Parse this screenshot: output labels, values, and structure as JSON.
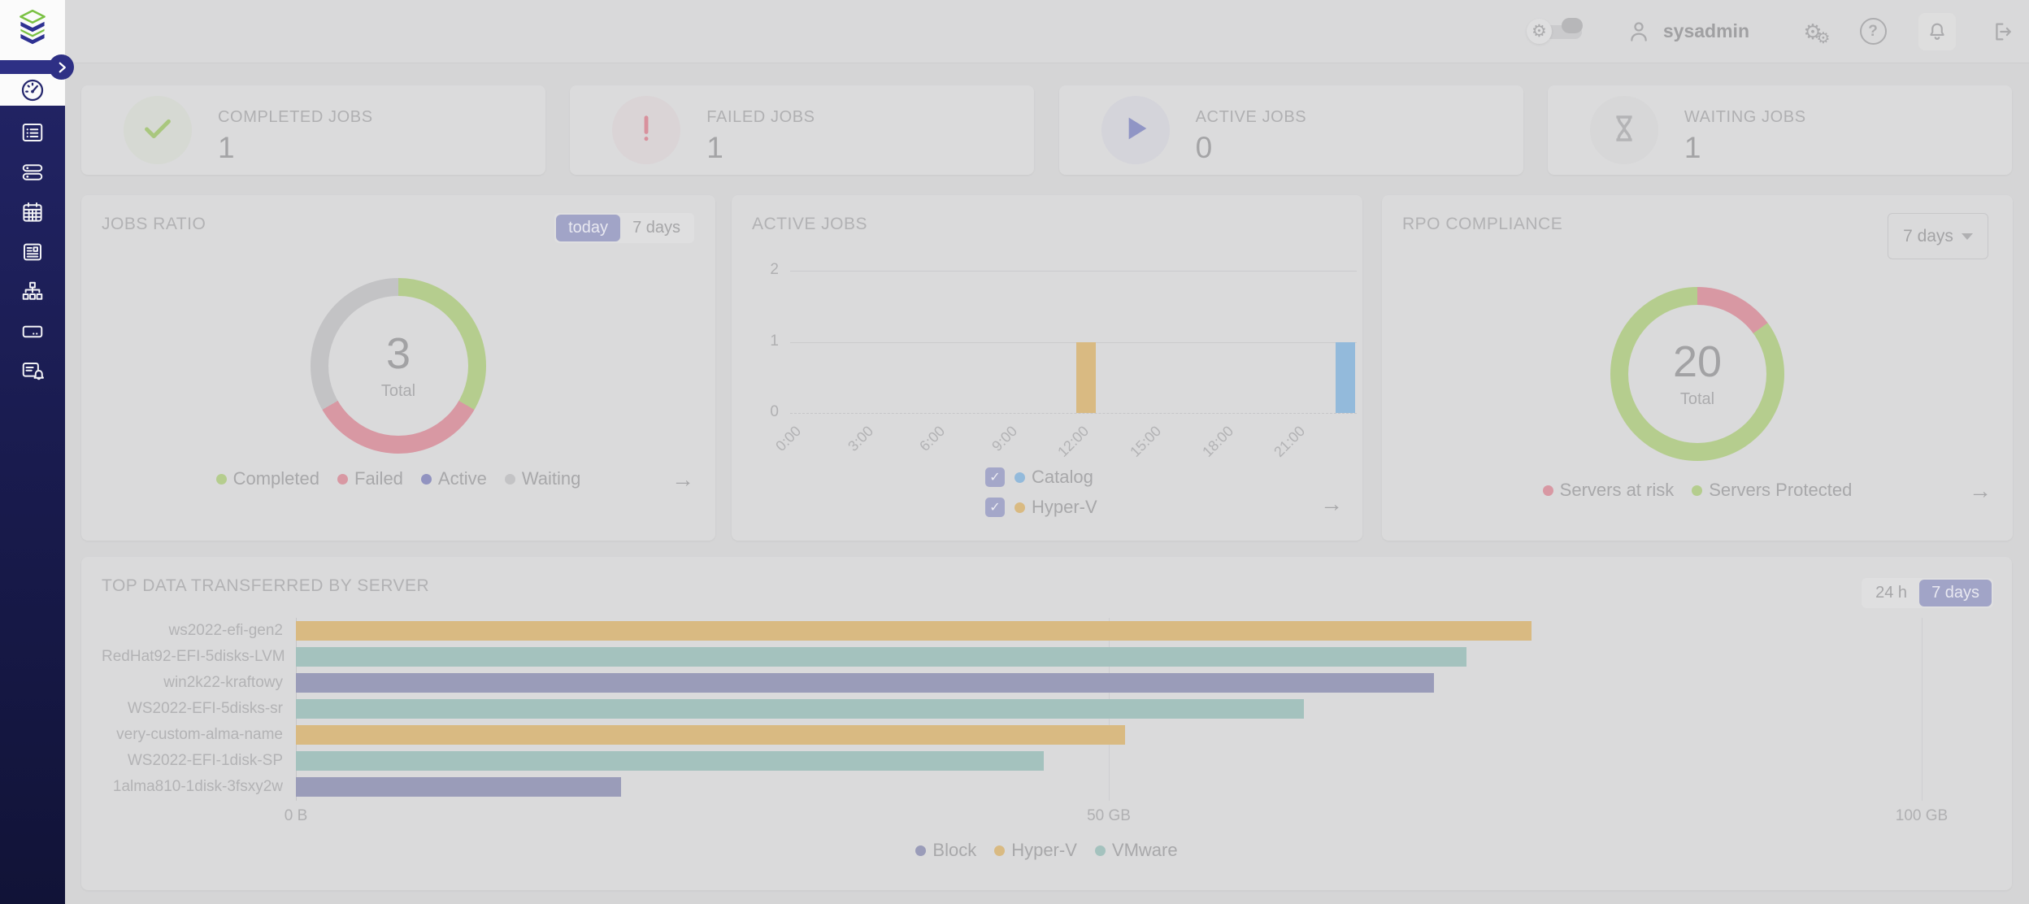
{
  "topbar": {
    "theme_toggle": {
      "icon": "gear-icon",
      "state": "on"
    },
    "username": "sysadmin",
    "icons": [
      "user-icon",
      "settings-gears-icon",
      "help-icon",
      "notifications-bell-icon",
      "logout-icon"
    ]
  },
  "sidebar": {
    "logo_icon": "stacked-layers-logo",
    "expand_icon": "chevron-right-icon",
    "items": [
      {
        "icon": "dashboard-gauge-icon",
        "active": true
      },
      {
        "icon": "jobs-list-icon",
        "active": false
      },
      {
        "icon": "instances-icon",
        "active": false
      },
      {
        "icon": "calendar-icon",
        "active": false
      },
      {
        "icon": "reporting-icon",
        "active": false
      },
      {
        "icon": "hierarchy-icon",
        "active": false
      },
      {
        "icon": "storage-icon",
        "active": false
      },
      {
        "icon": "alerts-icon",
        "active": false
      }
    ]
  },
  "stat_cards": [
    {
      "label": "COMPLETED JOBS",
      "value": "1",
      "icon": "check-icon",
      "accent": "#a9c77e"
    },
    {
      "label": "FAILED JOBS",
      "value": "1",
      "icon": "exclamation-icon",
      "accent": "#d8919d"
    },
    {
      "label": "ACTIVE JOBS",
      "value": "0",
      "icon": "play-icon",
      "accent": "#9095c5"
    },
    {
      "label": "WAITING JOBS",
      "value": "1",
      "icon": "hourglass-icon",
      "accent": "#b4b4b6"
    }
  ],
  "jobs_ratio": {
    "title": "JOBS RATIO",
    "buttons": {
      "today": "today",
      "seven_days": "7 days",
      "active": "today"
    },
    "total_value": "3",
    "total_label": "Total",
    "legend": [
      {
        "label": "Completed",
        "color": "#b5cd8e"
      },
      {
        "label": "Failed",
        "color": "#d898a3"
      },
      {
        "label": "Active",
        "color": "#9193c0"
      },
      {
        "label": "Waiting",
        "color": "#c3c3c5"
      }
    ],
    "arrow": "→"
  },
  "active_jobs": {
    "title": "ACTIVE JOBS",
    "legend": [
      {
        "label": "Catalog",
        "color": "#93badb",
        "checked": true
      },
      {
        "label": "Hyper-V",
        "color": "#d9ba82",
        "checked": true
      }
    ],
    "arrow": "→"
  },
  "rpo": {
    "title": "RPO COMPLIANCE",
    "range_select_value": "7 days",
    "total_value": "20",
    "total_label": "Total",
    "legend": [
      {
        "label": "Servers at risk",
        "color": "#d898a3"
      },
      {
        "label": "Servers Protected",
        "color": "#b5cd8e"
      }
    ],
    "arrow": "→"
  },
  "top_data": {
    "title": "TOP DATA TRANSFERRED BY SERVER",
    "buttons": {
      "day": "24 h",
      "seven_days": "7 days",
      "active": "7 days"
    },
    "legend": [
      {
        "label": "Block",
        "color": "#9a9cb9"
      },
      {
        "label": "Hyper-V",
        "color": "#d9ba82"
      },
      {
        "label": "VMware",
        "color": "#a4c2be"
      }
    ]
  },
  "chart_data": [
    {
      "id": "jobs_ratio_donut",
      "type": "pie",
      "title": "JOBS RATIO",
      "center_value": 3,
      "center_label": "Total",
      "segments": [
        {
          "label": "Completed",
          "value": 1,
          "color": "#b5cd8e"
        },
        {
          "label": "Failed",
          "value": 1,
          "color": "#d898a3"
        },
        {
          "label": "Active",
          "value": 0,
          "color": "#9193c0"
        },
        {
          "label": "Waiting",
          "value": 1,
          "color": "#c3c3c5"
        }
      ]
    },
    {
      "id": "active_jobs_timeline",
      "type": "bar",
      "title": "ACTIVE JOBS",
      "x_ticks": [
        "0:00",
        "3:00",
        "6:00",
        "9:00",
        "12:00",
        "15:00",
        "18:00",
        "21:00"
      ],
      "x_range_hours": [
        0,
        24
      ],
      "y_ticks": [
        0,
        1,
        2
      ],
      "ylim": [
        0,
        2
      ],
      "grid": true,
      "legend_position": "bottom",
      "series": [
        {
          "name": "Catalog",
          "color": "#93badb",
          "points": [
            {
              "hour": 23,
              "value": 1
            }
          ]
        },
        {
          "name": "Hyper-V",
          "color": "#d9ba82",
          "points": [
            {
              "hour": 12,
              "value": 1
            }
          ]
        }
      ]
    },
    {
      "id": "rpo_donut",
      "type": "pie",
      "title": "RPO COMPLIANCE",
      "center_value": 20,
      "center_label": "Total",
      "segments": [
        {
          "label": "Servers at risk",
          "value": 3,
          "color": "#d898a3"
        },
        {
          "label": "Servers Protected",
          "value": 17,
          "color": "#b5cd8e"
        }
      ]
    },
    {
      "id": "top_data_transferred",
      "type": "bar",
      "orientation": "horizontal",
      "title": "TOP DATA TRANSFERRED BY SERVER",
      "xlabel": "",
      "x_ticks": [
        {
          "label": "0 B",
          "value_gb": 0
        },
        {
          "label": "50 GB",
          "value_gb": 50
        },
        {
          "label": "100 GB",
          "value_gb": 100
        }
      ],
      "xlim_gb": [
        0,
        105.5
      ],
      "legend_position": "bottom",
      "rows": [
        {
          "label": "ws2022-efi-gen2",
          "series": "Hyper-V",
          "value_gb": 76,
          "color": "#d9ba82"
        },
        {
          "label": "RedHat92-EFI-5disks-LVM",
          "series": "VMware",
          "value_gb": 72,
          "color": "#a4c2be"
        },
        {
          "label": "win2k22-kraftowy",
          "series": "Block",
          "value_gb": 70,
          "color": "#9a9cb9"
        },
        {
          "label": "WS2022-EFI-5disks-sr",
          "series": "VMware",
          "value_gb": 62,
          "color": "#a4c2be"
        },
        {
          "label": "very-custom-alma-name",
          "series": "Hyper-V",
          "value_gb": 51,
          "color": "#d9ba82"
        },
        {
          "label": "WS2022-EFI-1disk-SP",
          "series": "VMware",
          "value_gb": 46,
          "color": "#a4c2be"
        },
        {
          "label": "1alma810-1disk-3fsxy2w",
          "series": "Block",
          "value_gb": 20,
          "color": "#9a9cb9"
        }
      ]
    }
  ]
}
